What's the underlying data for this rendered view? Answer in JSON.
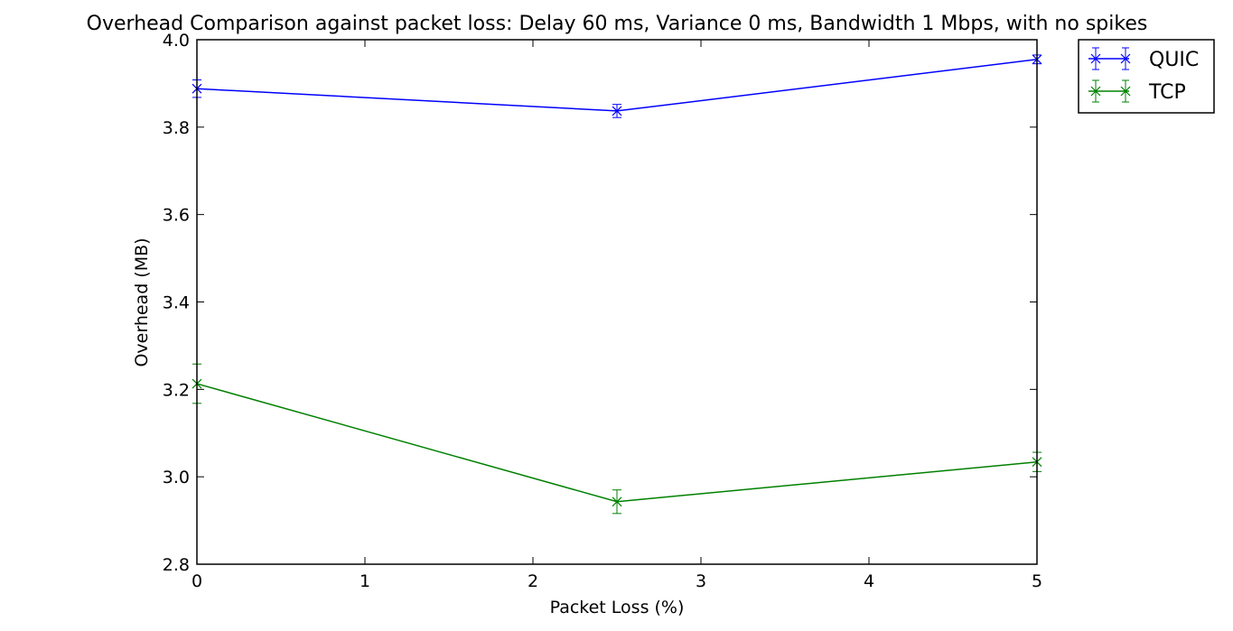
{
  "chart_data": {
    "type": "line",
    "title": "Overhead Comparison against packet loss: Delay 60 ms, Variance 0 ms, Bandwidth 1 Mbps, with no spikes",
    "xlabel": "Packet Loss (%)",
    "ylabel": "Overhead (MB)",
    "xlim": [
      0,
      5
    ],
    "ylim": [
      2.8,
      4.0
    ],
    "xticks": [
      0,
      1,
      2,
      3,
      4,
      5
    ],
    "xtick_labels": [
      "0",
      "1",
      "2",
      "3",
      "4",
      "5"
    ],
    "yticks": [
      2.8,
      3.0,
      3.2,
      3.4,
      3.6,
      3.8,
      4.0
    ],
    "ytick_labels": [
      "2.8",
      "3.0",
      "3.2",
      "3.4",
      "3.6",
      "3.8",
      "4.0"
    ],
    "grid": false,
    "legend_position": "outside top-right",
    "marker": "x",
    "series": [
      {
        "name": "QUIC",
        "color": "#0000ff",
        "x": [
          0,
          2.5,
          5
        ],
        "y": [
          3.888,
          3.837,
          3.955
        ],
        "err": [
          0.02,
          0.015,
          0.01
        ]
      },
      {
        "name": "TCP",
        "color": "#008000",
        "x": [
          0,
          2.5,
          5
        ],
        "y": [
          3.213,
          2.943,
          3.034
        ],
        "err": [
          0.045,
          0.027,
          0.022
        ]
      }
    ]
  }
}
